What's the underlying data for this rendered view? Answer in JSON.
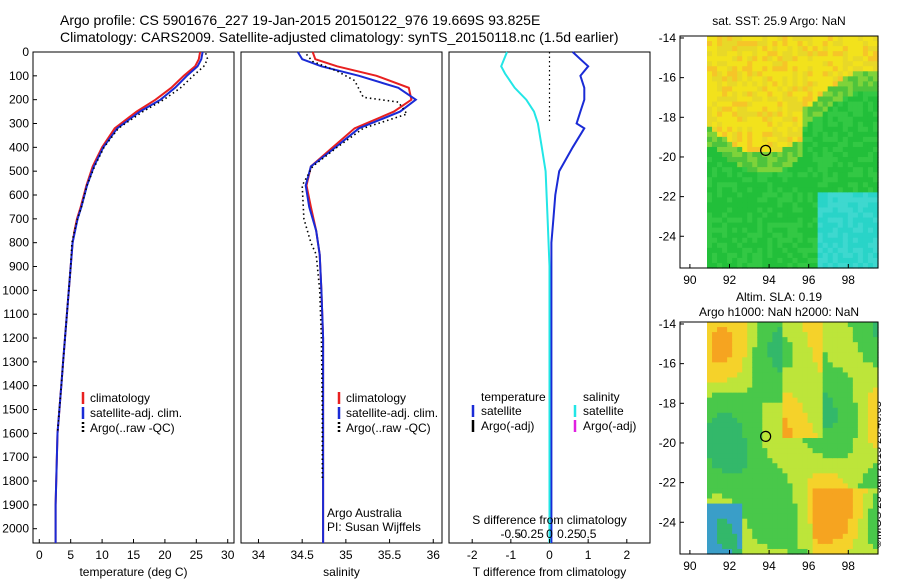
{
  "header": {
    "line1": "Argo profile: CS 5901676_227 19-Jan-2015 20150122_976 19.669S 93.825E",
    "line2": "Climatology: CARS2009. Satellite-adjusted climatology: synTS_20150118.nc (1.5d earlier)"
  },
  "credit": "©IMOS 25-Jan-2015 20:40:05",
  "colors": {
    "climatology": "#e82020",
    "satellite": "#1a2bd6",
    "argo": "#000000",
    "sal_satellite": "#22e6e6",
    "sal_argo": "#e020e0"
  },
  "chart_data": [
    {
      "type": "line",
      "name": "temperature-profile",
      "xlabel": "temperature (deg C)",
      "xlim": [
        -1,
        31
      ],
      "ylim": [
        2060,
        0
      ],
      "xticks": [
        0,
        5,
        10,
        15,
        20,
        25,
        30
      ],
      "yticks": [
        0,
        100,
        200,
        300,
        400,
        500,
        600,
        700,
        800,
        900,
        1000,
        1100,
        1200,
        1300,
        1400,
        1500,
        1600,
        1700,
        1800,
        1900,
        2000
      ],
      "series": [
        {
          "name": "climatology",
          "style": "solid",
          "x": [
            25.6,
            25.4,
            24.8,
            23,
            21,
            18.5,
            15.5,
            12,
            10,
            8.5,
            7.5,
            6.6,
            6,
            5.6,
            5.3,
            5,
            4.7,
            4.4,
            4.1,
            3.8,
            3.5,
            3.2,
            2.9,
            2.6,
            2.6
          ],
          "y": [
            0,
            30,
            60,
            100,
            150,
            200,
            250,
            320,
            400,
            480,
            560,
            650,
            700,
            750,
            800,
            900,
            1000,
            1100,
            1200,
            1300,
            1400,
            1500,
            1600,
            1900,
            2060
          ]
        },
        {
          "name": "satellite-adj. clim.",
          "style": "solid",
          "x": [
            26,
            25.8,
            25.2,
            23.5,
            21.6,
            19.3,
            16,
            12.4,
            10.2,
            8.7,
            7.6,
            6.7,
            6.1,
            5.7,
            5.3,
            5,
            4.7,
            4.4,
            4.1,
            3.8,
            3.5,
            3.2,
            2.9,
            2.6,
            2.6
          ],
          "y": [
            0,
            30,
            60,
            100,
            150,
            200,
            250,
            320,
            400,
            480,
            560,
            650,
            700,
            750,
            800,
            900,
            1000,
            1100,
            1200,
            1300,
            1400,
            1500,
            1600,
            1900,
            2060
          ]
        },
        {
          "name": "Argo(..raw -QC)",
          "style": "dotted",
          "x": [
            26.5,
            26.8,
            26.2,
            24.5,
            22.5,
            19.8,
            16.5,
            12.6,
            10.3,
            8.8,
            7.6,
            6.7,
            6.1,
            5.6,
            5.2,
            5,
            4.7,
            4.4,
            4.1,
            3.8,
            3.5,
            3.2,
            2.9
          ],
          "y": [
            5,
            30,
            60,
            100,
            150,
            200,
            250,
            320,
            400,
            480,
            560,
            650,
            700,
            750,
            800,
            900,
            1000,
            1100,
            1200,
            1300,
            1400,
            1500,
            1600
          ]
        }
      ],
      "legend": [
        "climatology",
        "satellite-adj. clim.",
        "Argo(..raw -QC)"
      ]
    },
    {
      "type": "line",
      "name": "salinity-profile",
      "xlabel": "salinity",
      "xlim": [
        33.8,
        36.1
      ],
      "ylim": [
        2060,
        0
      ],
      "xticks": [
        34,
        34.5,
        35,
        35.5,
        36
      ],
      "series": [
        {
          "name": "climatology",
          "style": "solid",
          "x": [
            34.62,
            34.65,
            34.9,
            35.35,
            35.72,
            35.75,
            35.55,
            35.1,
            34.85,
            34.6,
            34.55,
            34.6,
            34.66,
            34.7,
            34.72,
            34.74,
            34.74,
            34.74,
            34.74
          ],
          "y": [
            0,
            30,
            60,
            100,
            150,
            200,
            250,
            320,
            400,
            480,
            560,
            650,
            750,
            850,
            1000,
            1200,
            1500,
            1800,
            2060
          ]
        },
        {
          "name": "satellite-adj. clim.",
          "style": "solid",
          "x": [
            34.45,
            34.5,
            34.72,
            35.15,
            35.6,
            35.8,
            35.62,
            35.15,
            34.88,
            34.6,
            34.54,
            34.58,
            34.66,
            34.7,
            34.72,
            34.74,
            34.74,
            34.74,
            34.74
          ],
          "y": [
            0,
            30,
            60,
            100,
            150,
            200,
            250,
            320,
            400,
            480,
            560,
            650,
            750,
            850,
            1000,
            1200,
            1500,
            1800,
            2060
          ]
        },
        {
          "name": "Argo(..raw -QC)",
          "style": "dotted",
          "x": [
            34.55,
            34.62,
            34.9,
            35.1,
            35.2,
            35.6,
            35.7,
            35.2,
            34.9,
            34.62,
            34.5,
            34.52,
            34.6,
            34.66,
            34.7,
            34.72,
            34.73,
            34.73
          ],
          "y": [
            10,
            40,
            80,
            120,
            190,
            210,
            260,
            320,
            400,
            480,
            560,
            700,
            800,
            850,
            1000,
            1200,
            1500,
            1800
          ]
        }
      ],
      "legend": [
        "climatology",
        "satellite-adj. clim.",
        "Argo(..raw -QC)"
      ],
      "annotation": [
        "Argo Australia",
        "PI: Susan Wijffels"
      ]
    },
    {
      "type": "line",
      "name": "difference-profile",
      "xlabel_bottom": "T difference from climatology",
      "xlabel_top": "S difference from climatology",
      "xlim_T": [
        -2.6,
        2.6
      ],
      "xticks_T": [
        -2,
        -1,
        0,
        1,
        2
      ],
      "xticks_S": [
        -0.5,
        -0.25,
        0,
        0.25,
        0.5
      ],
      "series": [
        {
          "name": "temperature satellite",
          "style": "solid",
          "x": [
            0.6,
            0.8,
            1.0,
            0.8,
            0.9,
            0.9,
            0.8,
            0.7,
            0.9,
            0.6,
            0.25,
            0.15,
            0.1,
            0.05,
            0.05,
            0.05,
            0.05,
            0.05
          ],
          "y": [
            0,
            30,
            60,
            100,
            150,
            200,
            250,
            300,
            320,
            400,
            500,
            600,
            700,
            800,
            1000,
            1400,
            1800,
            2060
          ]
        },
        {
          "name": "temperature Argo(-adj)",
          "style": "dotted",
          "x": [
            0,
            0,
            0,
            0,
            0,
            0,
            0
          ],
          "y": [
            0,
            50,
            100,
            150,
            200,
            250,
            300
          ]
        },
        {
          "name": "salinity satellite",
          "style": "solid",
          "x": [
            -1.1,
            -1.25,
            -1.15,
            -0.9,
            -0.6,
            -0.4,
            -0.3,
            -0.2,
            -0.1,
            -0.05,
            0,
            0,
            0
          ],
          "y": [
            0,
            60,
            90,
            150,
            200,
            250,
            300,
            400,
            500,
            700,
            900,
            1400,
            2060
          ]
        }
      ],
      "legend_T": {
        "title": "temperature",
        "items": [
          "satellite",
          "Argo(-adj)"
        ]
      },
      "legend_S": {
        "title": "salinity",
        "items": [
          "satellite",
          "Argo(-adj)"
        ]
      }
    },
    {
      "type": "heatmap",
      "name": "sst-map",
      "title": "sat. SST: 25.9  Argo: NaN",
      "xlim": [
        89.5,
        99.5
      ],
      "ylim": [
        -25.6,
        -13.9
      ],
      "xticks": [
        90,
        92,
        94,
        96,
        98
      ],
      "yticks": [
        -14,
        -16,
        -18,
        -20,
        -22,
        -24
      ],
      "marker": {
        "lon": 93.825,
        "lat": -19.669
      }
    },
    {
      "type": "heatmap",
      "name": "sla-map",
      "title_line1": "Altim. SLA: 0.19",
      "title_line2": "Argo h1000: NaN  h2000: NaN",
      "xlim": [
        89.5,
        99.5
      ],
      "ylim": [
        -25.6,
        -13.9
      ],
      "xticks": [
        90,
        92,
        94,
        96,
        98
      ],
      "yticks": [
        -14,
        -16,
        -18,
        -20,
        -22,
        -24
      ],
      "marker": {
        "lon": 93.825,
        "lat": -19.669
      }
    }
  ]
}
